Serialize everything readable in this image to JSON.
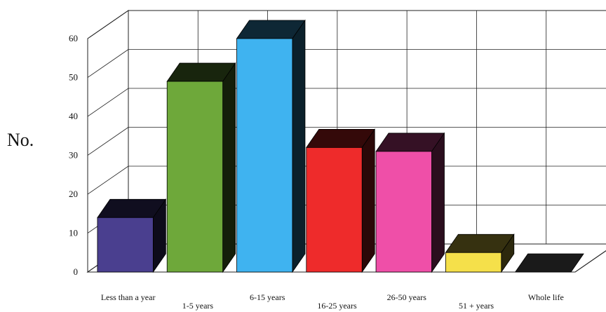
{
  "chart_data": {
    "type": "bar",
    "title": "",
    "xlabel": "",
    "ylabel": "No.",
    "ylim": [
      0,
      60
    ],
    "yticks": [
      0,
      10,
      20,
      30,
      40,
      50,
      60
    ],
    "grid": true,
    "style": "3d",
    "categories": [
      "Less than a year",
      "1-5 years",
      "6-15 years",
      "16-25 years",
      "26-50 years",
      "51 + years",
      "Whole life"
    ],
    "values": [
      14,
      49,
      60,
      32,
      31,
      5,
      0
    ],
    "colors": [
      "#4a3f8f",
      "#6ea83a",
      "#3fb3f0",
      "#ee2b2b",
      "#ef4fa8",
      "#f5e04a",
      "#1a1a1a"
    ]
  }
}
